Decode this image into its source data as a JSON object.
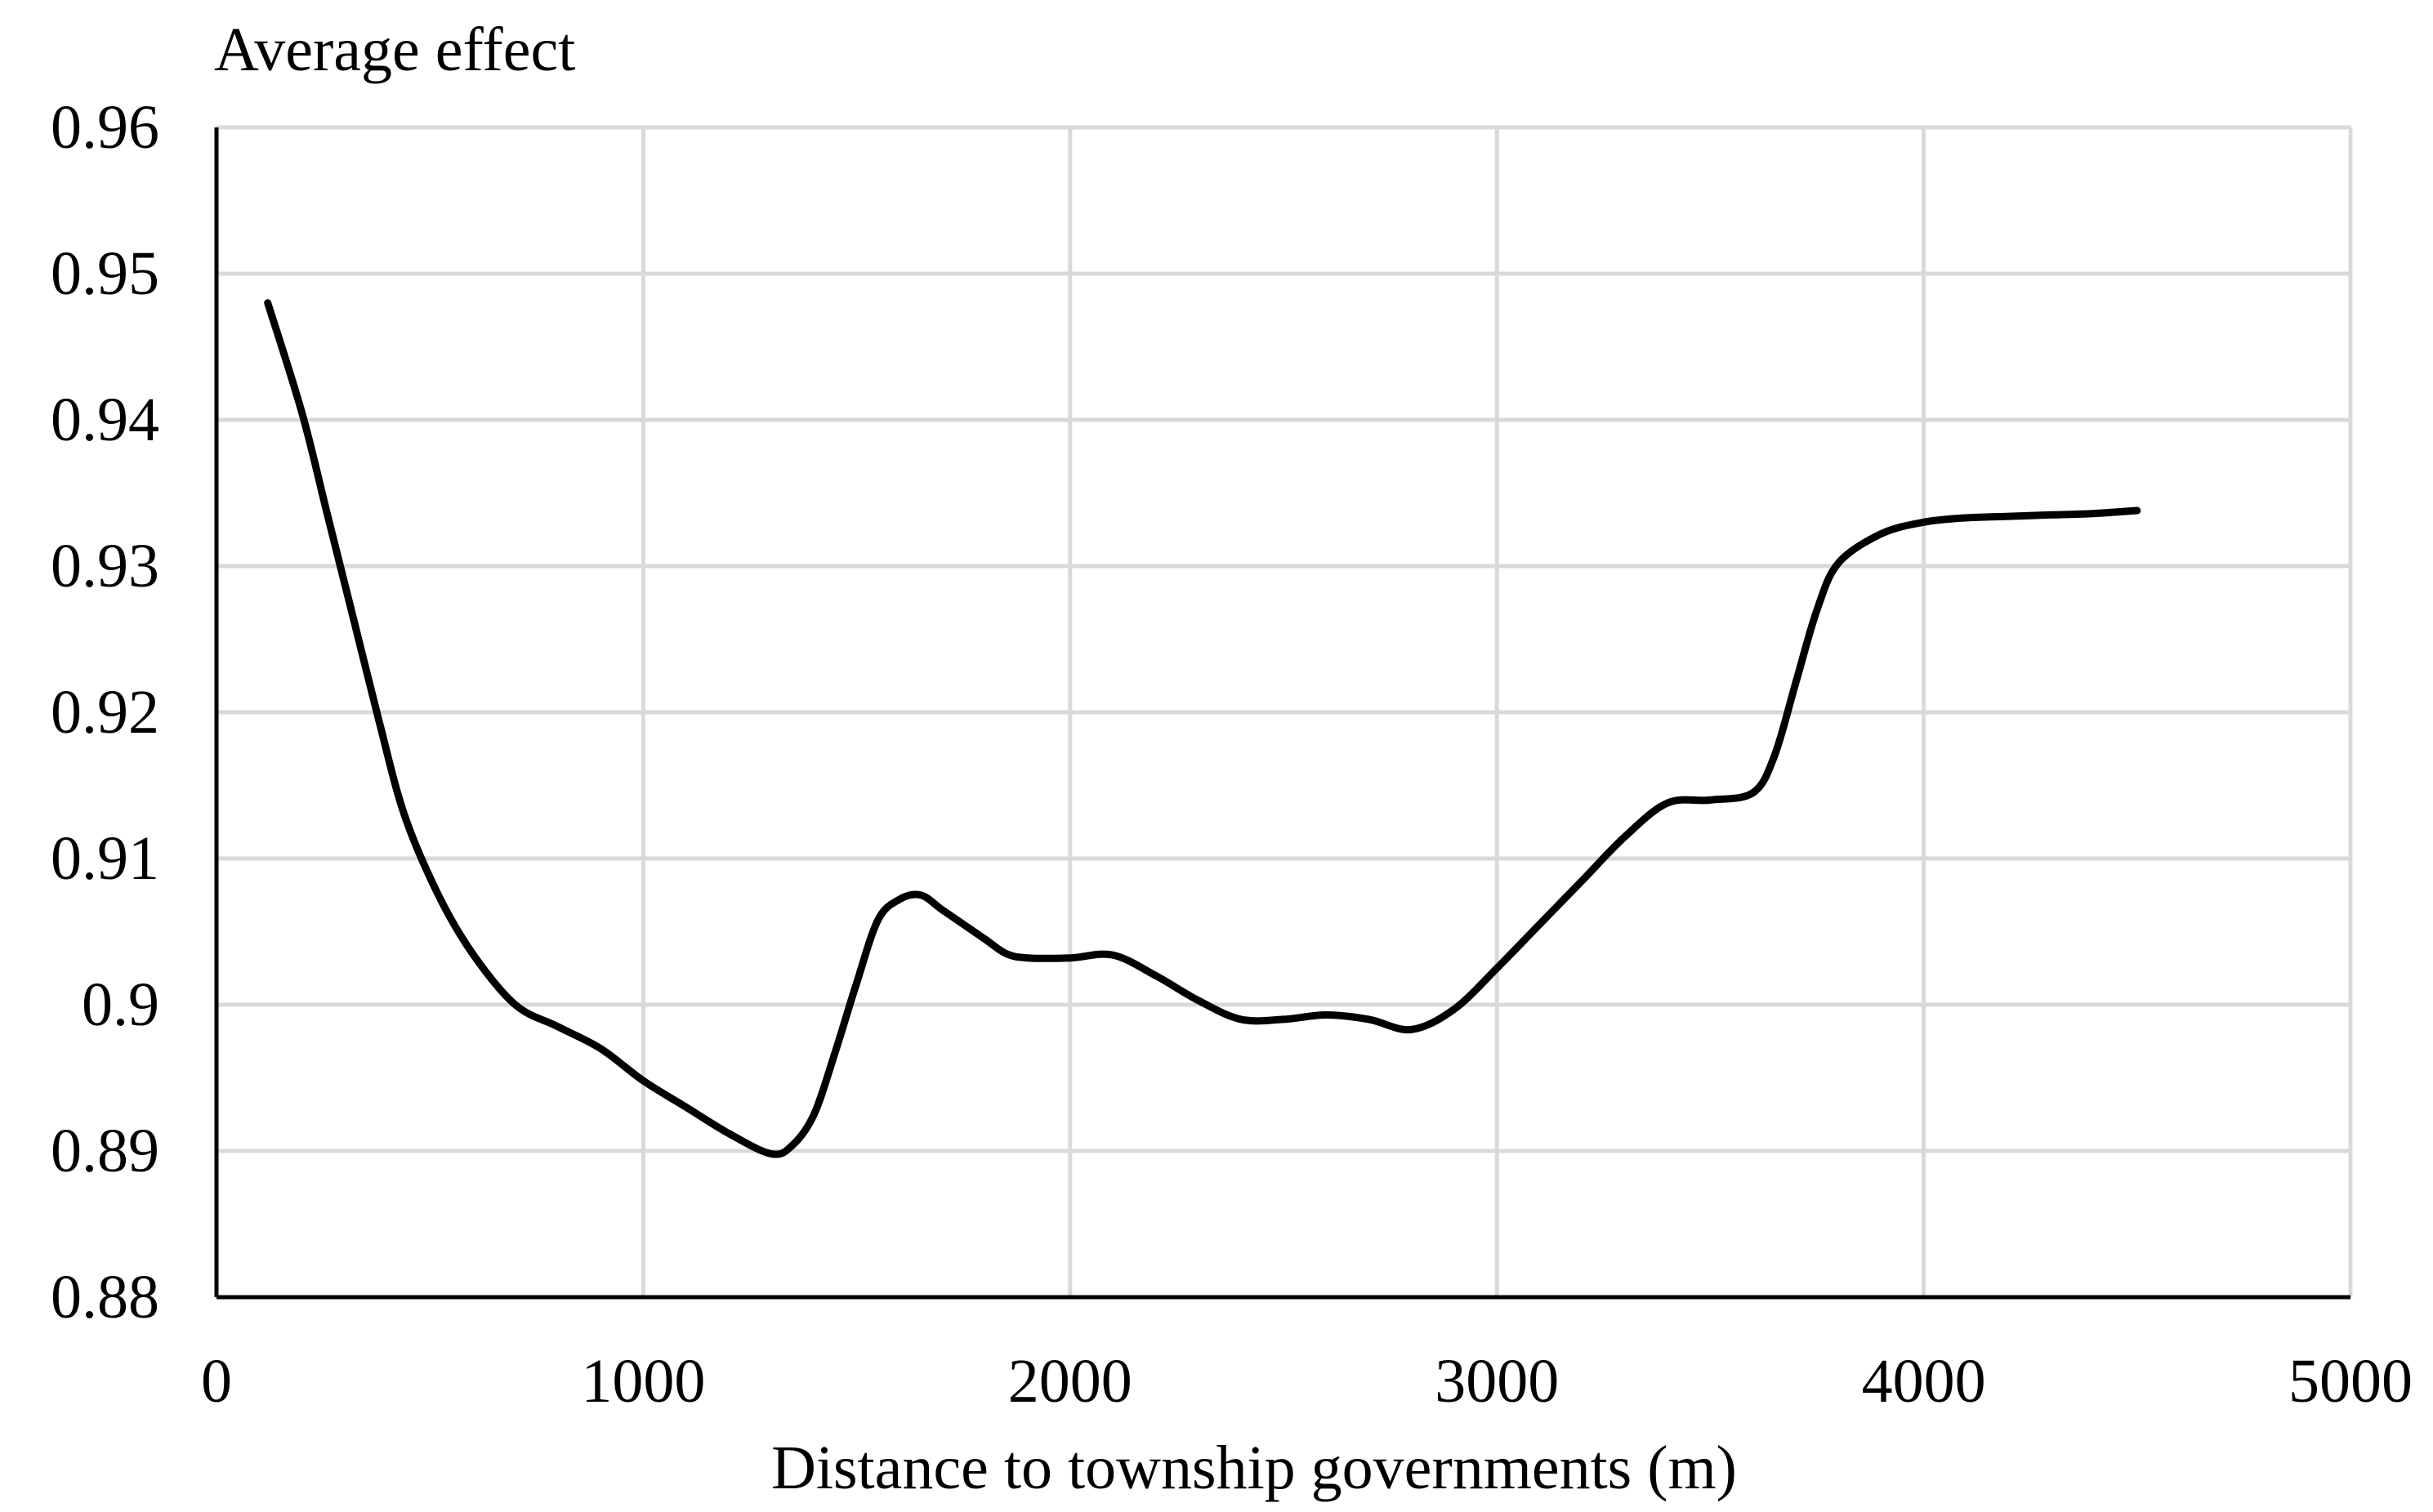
{
  "chart_data": {
    "type": "line",
    "title": "",
    "ylabel": "Average effect",
    "xlabel": "Distance to township governments (m)",
    "xlim": [
      0,
      5000
    ],
    "ylim": [
      0.88,
      0.96
    ],
    "x_ticks": [
      0,
      1000,
      2000,
      3000,
      4000,
      5000
    ],
    "x_tick_labels": [
      "0",
      "1000",
      "2000",
      "3000",
      "4000",
      "5000"
    ],
    "y_ticks": [
      0.88,
      0.89,
      0.9,
      0.91,
      0.92,
      0.93,
      0.94,
      0.95,
      0.96
    ],
    "y_tick_labels": [
      "0.88",
      "0.89",
      "0.9",
      "0.91",
      "0.92",
      "0.93",
      "0.94",
      "0.95",
      "0.96"
    ],
    "grid": true,
    "legend": "none",
    "colors": {
      "line": "#000000",
      "grid": "#d9d9d9",
      "axis": "#000000"
    },
    "series": [
      {
        "x": [
          120,
          200,
          260,
          320,
          380,
          440,
          520,
          600,
          700,
          800,
          900,
          1000,
          1100,
          1200,
          1300,
          1350,
          1400,
          1450,
          1500,
          1550,
          1600,
          1650,
          1700,
          1750,
          1800,
          1850,
          1900,
          2000,
          2100,
          2200,
          2300,
          2400,
          2500,
          2600,
          2700,
          2800,
          2900,
          3000,
          3100,
          3200,
          3300,
          3400,
          3500,
          3600,
          3650,
          3700,
          3750,
          3800,
          3900,
          4000,
          4100,
          4200,
          4300,
          4400,
          4500
        ],
        "y": [
          0.948,
          0.9405,
          0.9335,
          0.9265,
          0.9195,
          0.913,
          0.9075,
          0.9035,
          0.9,
          0.8985,
          0.897,
          0.8948,
          0.893,
          0.8912,
          0.8898,
          0.8904,
          0.8925,
          0.8968,
          0.9015,
          0.9058,
          0.9072,
          0.9075,
          0.9065,
          0.9055,
          0.9045,
          0.9035,
          0.9032,
          0.9032,
          0.9034,
          0.902,
          0.9003,
          0.899,
          0.899,
          0.8993,
          0.899,
          0.8983,
          0.8997,
          0.9025,
          0.9055,
          0.9085,
          0.9115,
          0.9138,
          0.914,
          0.9145,
          0.917,
          0.922,
          0.927,
          0.9302,
          0.9322,
          0.933,
          0.9333,
          0.9334,
          0.9335,
          0.9336,
          0.9338
        ]
      }
    ]
  }
}
